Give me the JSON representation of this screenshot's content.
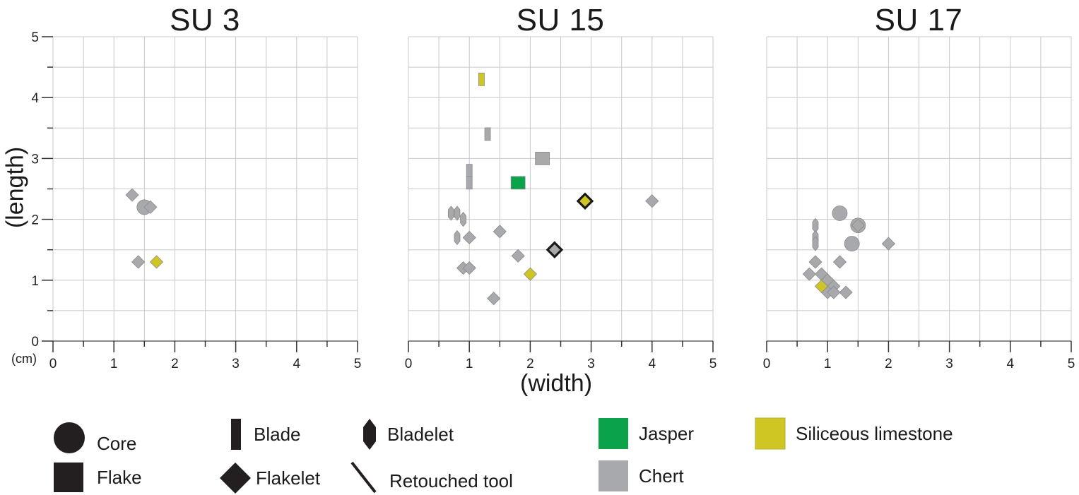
{
  "chart_data": {
    "type": "scatter",
    "title": "",
    "xlabel": "(width)",
    "ylabel": "(length)",
    "unit_label": "(cm)",
    "xlim": [
      0,
      5
    ],
    "ylim": [
      0,
      5
    ],
    "x_ticks": [
      "0",
      "1",
      "2",
      "3",
      "4",
      "5"
    ],
    "y_ticks": [
      "0",
      "1",
      "2",
      "3",
      "4",
      "5"
    ],
    "grid": true,
    "grid_step": 0.5,
    "colors": {
      "Jasper": "#0aa24b",
      "Chert": "#a7a9ac",
      "Siliceous limestone": "#cfc623"
    },
    "panels": [
      {
        "title": "SU 3",
        "points": [
          {
            "x": 1.3,
            "y": 2.4,
            "type": "Flakelet",
            "material": "Chert",
            "retouched": false
          },
          {
            "x": 1.5,
            "y": 2.2,
            "type": "Core",
            "material": "Chert",
            "retouched": false
          },
          {
            "x": 1.6,
            "y": 2.2,
            "type": "Flakelet",
            "material": "Chert",
            "retouched": false
          },
          {
            "x": 1.4,
            "y": 1.3,
            "type": "Flakelet",
            "material": "Chert",
            "retouched": false
          },
          {
            "x": 1.7,
            "y": 1.3,
            "type": "Flakelet",
            "material": "Siliceous limestone",
            "retouched": false
          }
        ]
      },
      {
        "title": "SU 15",
        "points": [
          {
            "x": 1.2,
            "y": 4.3,
            "type": "Blade",
            "material": "Siliceous limestone",
            "retouched": false
          },
          {
            "x": 1.3,
            "y": 3.4,
            "type": "Blade",
            "material": "Chert",
            "retouched": false
          },
          {
            "x": 2.2,
            "y": 3.0,
            "type": "Flake",
            "material": "Chert",
            "retouched": false
          },
          {
            "x": 1.0,
            "y": 2.8,
            "type": "Blade",
            "material": "Chert",
            "retouched": false
          },
          {
            "x": 1.0,
            "y": 2.6,
            "type": "Blade",
            "material": "Chert",
            "retouched": false
          },
          {
            "x": 1.8,
            "y": 2.6,
            "type": "Flake",
            "material": "Jasper",
            "retouched": false
          },
          {
            "x": 2.9,
            "y": 2.3,
            "type": "Flakelet",
            "material": "Siliceous limestone",
            "retouched": true
          },
          {
            "x": 4.0,
            "y": 2.3,
            "type": "Flakelet",
            "material": "Chert",
            "retouched": false
          },
          {
            "x": 0.7,
            "y": 2.1,
            "type": "Bladelet",
            "material": "Chert",
            "retouched": false
          },
          {
            "x": 0.8,
            "y": 2.1,
            "type": "Bladelet",
            "material": "Chert",
            "retouched": false
          },
          {
            "x": 0.9,
            "y": 2.0,
            "type": "Bladelet",
            "material": "Chert",
            "retouched": false
          },
          {
            "x": 0.8,
            "y": 1.7,
            "type": "Bladelet",
            "material": "Chert",
            "retouched": false
          },
          {
            "x": 1.0,
            "y": 1.7,
            "type": "Flakelet",
            "material": "Chert",
            "retouched": false
          },
          {
            "x": 1.5,
            "y": 1.8,
            "type": "Flakelet",
            "material": "Chert",
            "retouched": false
          },
          {
            "x": 2.4,
            "y": 1.5,
            "type": "Flakelet",
            "material": "Chert",
            "retouched": true
          },
          {
            "x": 1.8,
            "y": 1.4,
            "type": "Flakelet",
            "material": "Chert",
            "retouched": false
          },
          {
            "x": 0.9,
            "y": 1.2,
            "type": "Flakelet",
            "material": "Chert",
            "retouched": false
          },
          {
            "x": 1.0,
            "y": 1.2,
            "type": "Flakelet",
            "material": "Chert",
            "retouched": false
          },
          {
            "x": 2.0,
            "y": 1.1,
            "type": "Flakelet",
            "material": "Siliceous limestone",
            "retouched": false
          },
          {
            "x": 1.4,
            "y": 0.7,
            "type": "Flakelet",
            "material": "Chert",
            "retouched": false
          }
        ]
      },
      {
        "title": "SU 17",
        "points": [
          {
            "x": 1.2,
            "y": 2.1,
            "type": "Core",
            "material": "Chert",
            "retouched": false
          },
          {
            "x": 1.5,
            "y": 1.9,
            "type": "Core",
            "material": "Chert",
            "retouched": false
          },
          {
            "x": 1.5,
            "y": 1.9,
            "type": "Flakelet",
            "material": "Chert",
            "retouched": false
          },
          {
            "x": 1.4,
            "y": 1.6,
            "type": "Core",
            "material": "Chert",
            "retouched": false
          },
          {
            "x": 0.8,
            "y": 1.9,
            "type": "Bladelet",
            "material": "Chert",
            "retouched": false
          },
          {
            "x": 0.8,
            "y": 1.7,
            "type": "Bladelet",
            "material": "Chert",
            "retouched": false
          },
          {
            "x": 0.8,
            "y": 1.6,
            "type": "Bladelet",
            "material": "Chert",
            "retouched": false
          },
          {
            "x": 2.0,
            "y": 1.6,
            "type": "Flakelet",
            "material": "Chert",
            "retouched": false
          },
          {
            "x": 0.8,
            "y": 1.3,
            "type": "Flakelet",
            "material": "Chert",
            "retouched": false
          },
          {
            "x": 1.2,
            "y": 1.3,
            "type": "Flakelet",
            "material": "Chert",
            "retouched": false
          },
          {
            "x": 0.7,
            "y": 1.1,
            "type": "Flakelet",
            "material": "Chert",
            "retouched": false
          },
          {
            "x": 0.9,
            "y": 1.1,
            "type": "Flakelet",
            "material": "Chert",
            "retouched": false
          },
          {
            "x": 1.0,
            "y": 1.0,
            "type": "Flakelet",
            "material": "Chert",
            "retouched": false
          },
          {
            "x": 1.1,
            "y": 0.9,
            "type": "Flakelet",
            "material": "Chert",
            "retouched": false
          },
          {
            "x": 1.0,
            "y": 0.8,
            "type": "Flakelet",
            "material": "Chert",
            "retouched": false
          },
          {
            "x": 1.1,
            "y": 0.8,
            "type": "Flakelet",
            "material": "Chert",
            "retouched": false
          },
          {
            "x": 1.3,
            "y": 0.8,
            "type": "Flakelet",
            "material": "Chert",
            "retouched": false
          },
          {
            "x": 0.9,
            "y": 0.9,
            "type": "Flakelet",
            "material": "Siliceous limestone",
            "retouched": false
          }
        ]
      }
    ],
    "legend": {
      "position": "bottom",
      "types": [
        {
          "label": "Core",
          "shape": "circle"
        },
        {
          "label": "Flake",
          "shape": "square"
        },
        {
          "label": "Blade",
          "shape": "tall-rectangle"
        },
        {
          "label": "Flakelet",
          "shape": "diamond"
        },
        {
          "label": "Bladelet",
          "shape": "elongated-hexagon"
        },
        {
          "label": "Retouched tool",
          "shape": "slash-line (bold black outline)"
        }
      ],
      "materials": [
        {
          "label": "Jasper",
          "color": "#0aa24b"
        },
        {
          "label": "Chert",
          "color": "#a7a9ac"
        },
        {
          "label": "Siliceous limestone",
          "color": "#cfc623"
        }
      ]
    }
  }
}
